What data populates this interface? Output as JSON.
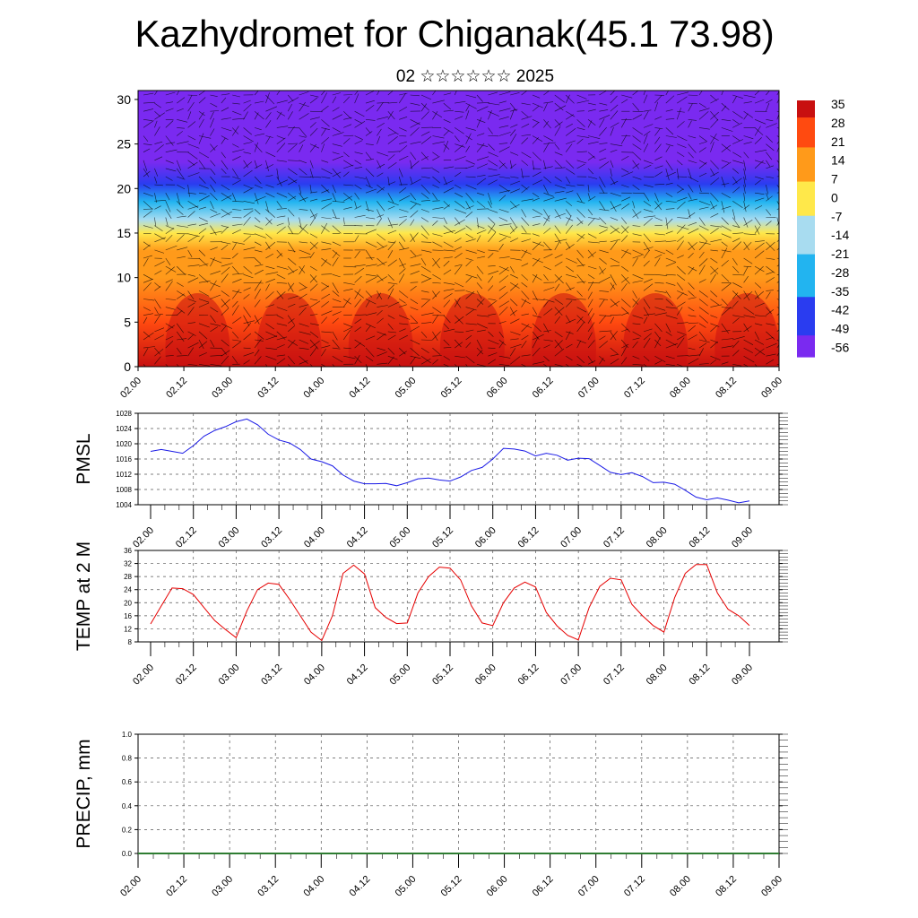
{
  "title": "Kazhydromet for Chiganak(45.1 73.98)",
  "subtitle": "02 ☆☆☆☆☆☆ 2025",
  "chart_data": [
    {
      "type": "heatmap",
      "name": "vertical-section",
      "x_tick_labels": [
        "02.00",
        "02.12",
        "03.00",
        "03.12",
        "04.00",
        "04.12",
        "05.00",
        "05.12",
        "06.00",
        "06.12",
        "07.00",
        "07.12",
        "08.00",
        "08.12",
        "09.00"
      ],
      "y_ticks": [
        0,
        5,
        10,
        15,
        20,
        25,
        30
      ],
      "ylim": [
        0,
        31
      ],
      "colorbar_labels": [
        "35",
        "28",
        "21",
        "14",
        "7",
        "0",
        "-7",
        "-14",
        "-21",
        "-28",
        "-35",
        "-42",
        "-49",
        "-56"
      ],
      "colors": {
        "hot": "#c81010",
        "warm": "#ff4a10",
        "orange": "#ff9a1a",
        "yellow": "#ffe84a",
        "light_blue": "#a8dcf0",
        "cyan": "#22b4f0",
        "blue": "#2a3cf0",
        "violet": "#7a2af0"
      },
      "temperature_profile": [
        {
          "height": 0,
          "temp": 30
        },
        {
          "height": 5,
          "temp": 24
        },
        {
          "height": 10,
          "temp": 16
        },
        {
          "height": 13,
          "temp": 8
        },
        {
          "height": 15,
          "temp": -2
        },
        {
          "height": 16.5,
          "temp": -14
        },
        {
          "height": 18.5,
          "temp": -28
        },
        {
          "height": 20.5,
          "temp": -42
        },
        {
          "height": 23,
          "temp": -52
        },
        {
          "height": 26,
          "temp": -58
        },
        {
          "height": 31,
          "temp": -56
        }
      ]
    },
    {
      "type": "line",
      "name": "pmsl",
      "ylabel": "PMSL",
      "color": "#1a1ae6",
      "ylim": [
        1004,
        1028
      ],
      "y_ticks": [
        1004,
        1008,
        1012,
        1016,
        1020,
        1024,
        1028
      ],
      "x_tick_labels": [
        "02.00",
        "02.12",
        "03.00",
        "03.12",
        "04.00",
        "04.12",
        "05.00",
        "05.12",
        "06.00",
        "06.12",
        "07.00",
        "07.12",
        "08.00",
        "08.12",
        "09.00"
      ],
      "x_hours": [
        0,
        3,
        6,
        9,
        12,
        15,
        18,
        21,
        24,
        27,
        30,
        33,
        36,
        39,
        42,
        45,
        48,
        51,
        54,
        57,
        60,
        63,
        66,
        69,
        72,
        75,
        78,
        81,
        84,
        87,
        90,
        93,
        96,
        99,
        102,
        105,
        108,
        111,
        114,
        117,
        120,
        123,
        126,
        129,
        132,
        135,
        138,
        141,
        144,
        147,
        150,
        153,
        156,
        159,
        162,
        165,
        168
      ],
      "values": [
        1018.0,
        1018.5,
        1018.0,
        1017.5,
        1019.5,
        1022.0,
        1023.5,
        1024.5,
        1025.8,
        1026.5,
        1025.0,
        1022.5,
        1021.0,
        1020.2,
        1018.5,
        1016.0,
        1015.3,
        1014.2,
        1011.8,
        1010.2,
        1009.5,
        1009.5,
        1009.6,
        1009.0,
        1009.8,
        1010.8,
        1011.0,
        1010.5,
        1010.2,
        1011.3,
        1013.0,
        1013.8,
        1016.0,
        1018.8,
        1018.6,
        1018.1,
        1016.8,
        1017.5,
        1017.0,
        1015.7,
        1016.2,
        1016.1,
        1014.3,
        1012.5,
        1011.9,
        1012.4,
        1011.4,
        1009.8,
        1009.9,
        1009.4,
        1007.8,
        1006.0,
        1005.3,
        1005.8,
        1005.2,
        1004.5,
        1005.0
      ]
    },
    {
      "type": "line",
      "name": "temp-2m",
      "ylabel": "TEMP at 2 M",
      "color": "#e60000",
      "ylim": [
        8,
        36
      ],
      "y_ticks": [
        8,
        12,
        16,
        20,
        24,
        28,
        32,
        36
      ],
      "x_tick_labels": [
        "02.00",
        "02.12",
        "03.00",
        "03.12",
        "04.00",
        "04.12",
        "05.00",
        "05.12",
        "06.00",
        "06.12",
        "07.00",
        "07.12",
        "08.00",
        "08.12",
        "09.00"
      ],
      "x_hours": [
        0,
        3,
        6,
        9,
        12,
        15,
        18,
        21,
        24,
        27,
        30,
        33,
        36,
        39,
        42,
        45,
        48,
        51,
        54,
        57,
        60,
        63,
        66,
        69,
        72,
        75,
        78,
        81,
        84,
        87,
        90,
        93,
        96,
        99,
        102,
        105,
        108,
        111,
        114,
        117,
        120,
        123,
        126,
        129,
        132,
        135,
        138,
        141,
        144,
        147,
        150,
        153,
        156,
        159,
        162,
        165,
        168
      ],
      "values": [
        13.5,
        19.0,
        24.5,
        24.3,
        22.5,
        18.5,
        14.5,
        11.8,
        9.3,
        17.5,
        24.0,
        26.0,
        25.6,
        21.0,
        16.0,
        11.0,
        8.4,
        16.0,
        29.0,
        31.5,
        28.8,
        18.5,
        15.5,
        13.6,
        13.8,
        23.0,
        28.0,
        30.9,
        30.6,
        26.9,
        19.0,
        13.8,
        13.0,
        20.0,
        24.5,
        26.3,
        24.8,
        17.0,
        12.9,
        10.0,
        8.6,
        18.5,
        25.0,
        27.5,
        27.0,
        19.5,
        16.0,
        13.0,
        11.0,
        21.5,
        29.0,
        31.7,
        31.7,
        23.0,
        18.0,
        16.0,
        13.0
      ]
    },
    {
      "type": "line",
      "name": "precip",
      "ylabel": "PRECIP, mm",
      "color": "#2e7d32",
      "ylim": [
        0,
        1.0
      ],
      "y_tick_labels": [
        "0.0",
        "0.2",
        "0.4",
        "0.6",
        "0.8",
        "1.0"
      ],
      "x_tick_labels": [
        "02.00",
        "02.12",
        "03.00",
        "03.12",
        "04.00",
        "04.12",
        "05.00",
        "05.12",
        "06.00",
        "06.12",
        "07.00",
        "07.12",
        "08.00",
        "08.12",
        "09.00"
      ],
      "values": [
        0,
        0,
        0,
        0,
        0,
        0,
        0,
        0,
        0,
        0,
        0,
        0,
        0,
        0,
        0
      ]
    }
  ]
}
